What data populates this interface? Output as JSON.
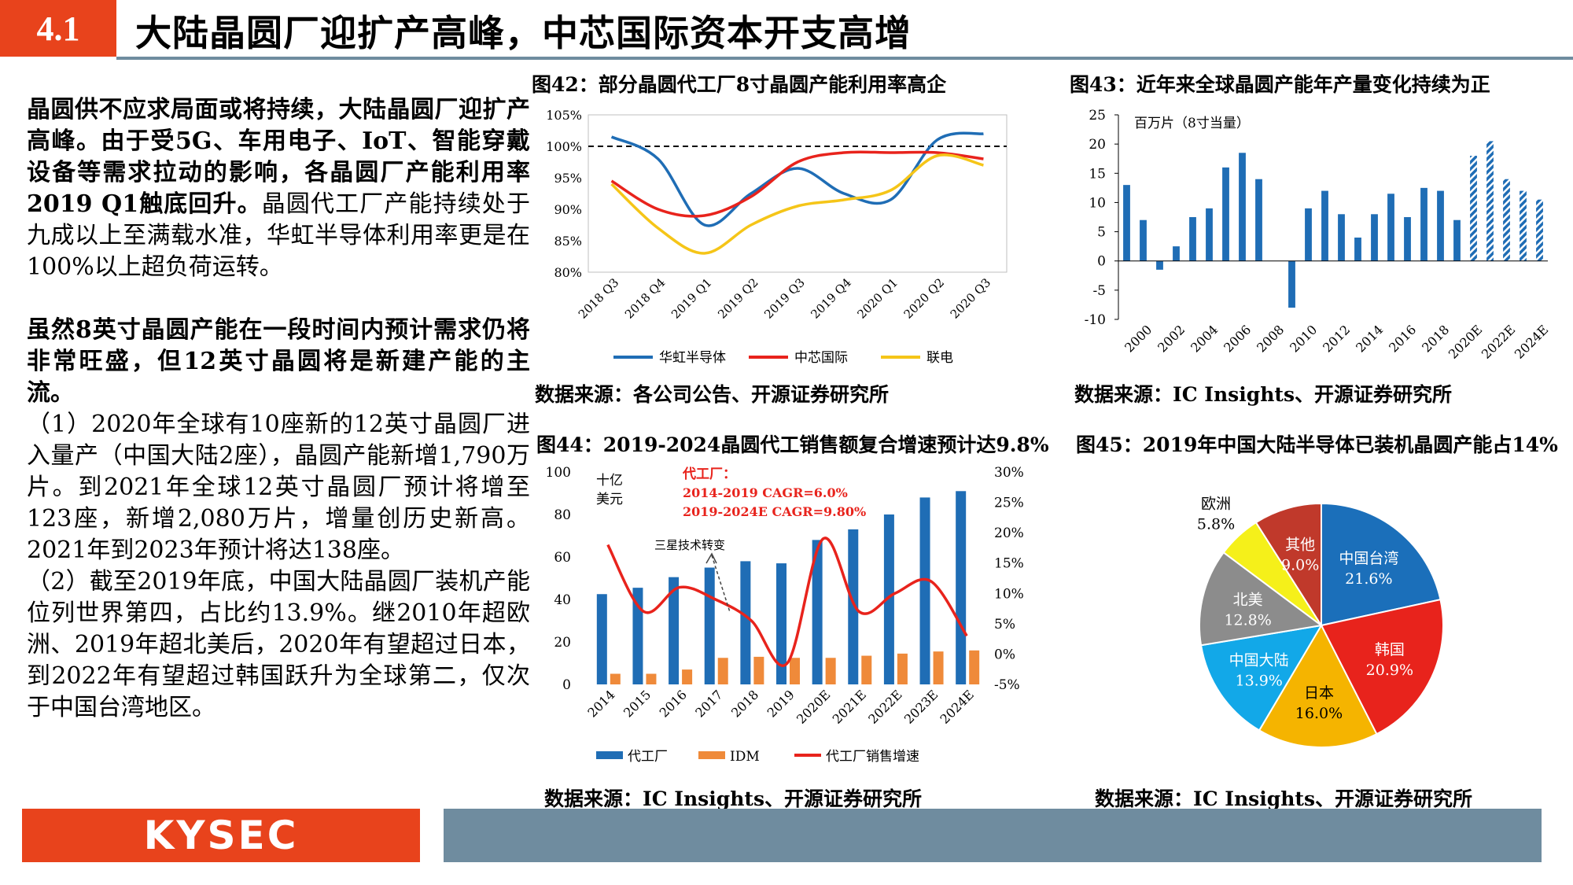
{
  "header": {
    "section_no": "4.1",
    "title": "大陆晶圆厂迎扩产高峰，中芯国际资本开支高增"
  },
  "body": {
    "p1_lead": "晶圆供不应求局面或将持续，大陆晶圆厂迎扩产高峰。由于受5G、车用电子、IoT、智能穿戴设备等需求拉动的影响，各晶圆厂产能利用率2019 Q1触底回升。",
    "p1_rest": "晶圆代工厂产能持续处于九成以上至满载水准，华虹半导体利用率更是在100%以上超负荷运转。",
    "p2_lead": "虽然8英寸晶圆产能在一段时间内预计需求仍将非常旺盛，但12英寸晶圆将是新建产能的主流。",
    "p2_item1": "（1）2020年全球有10座新的12英寸晶圆厂进入量产（中国大陆2座），晶圆产能新增1,790万片。到2021年全球12英寸晶圆厂预计将增至123座，新增2,080万片，增量创历史新高。2021年到2023年预计将达138座。",
    "p2_item2": "（2）截至2019年底，中国大陆晶圆厂装机产能位列世界第四，占比约13.9%。继2010年超欧洲、2019年超北美后，2020年有望超过日本，到2022年有望超过韩国跃升为全球第二，仅次于中国台湾地区。"
  },
  "figures": {
    "f42_title": "图42：部分晶圆代工厂8寸晶圆产能利用率高企",
    "f42_source": "数据来源：各公司公告、开源证券研究所",
    "f43_title": "图43：近年来全球晶圆产能年产量变化持续为正",
    "f43_source": "数据来源：IC Insights、开源证券研究所",
    "f44_title": "图44：2019-2024晶圆代工销售额复合增速预计达9.8%",
    "f44_source": "数据来源：IC Insights、开源证券研究所",
    "f45_title": "图45：2019年中国大陆半导体已装机晶圆产能占14%",
    "f45_source": "数据来源：IC Insights、开源证券研究所"
  },
  "footer": {
    "logo": "KYSEC"
  },
  "chart_data": [
    {
      "id": "fig42",
      "type": "line",
      "categories": [
        "2018 Q3",
        "2018 Q4",
        "2019 Q1",
        "2019 Q2",
        "2019 Q3",
        "2019 Q4",
        "2020 Q1",
        "2020 Q2",
        "2020 Q3"
      ],
      "ylim": [
        80,
        105
      ],
      "yticks": [
        80,
        85,
        90,
        95,
        100,
        105
      ],
      "ytick_labels": [
        "80%",
        "85%",
        "90%",
        "95%",
        "100%",
        "105%"
      ],
      "reference_line": 100,
      "series": [
        {
          "name": "华虹半导体",
          "color": "#1f6db5",
          "values": [
            101.5,
            98.0,
            87.5,
            92.5,
            96.5,
            92.5,
            91.5,
            101.0,
            102.0
          ]
        },
        {
          "name": "中芯国际",
          "color": "#e8231c",
          "values": [
            94.5,
            90.0,
            89.0,
            92.0,
            97.5,
            99.0,
            99.0,
            99.0,
            98.0
          ]
        },
        {
          "name": "联电",
          "color": "#f5c518",
          "values": [
            94.0,
            87.0,
            83.0,
            87.5,
            90.5,
            91.5,
            93.0,
            98.5,
            97.0
          ]
        }
      ]
    },
    {
      "id": "fig43",
      "type": "bar",
      "unit_label": "百万片（8寸当量）",
      "x": [
        1999,
        2000,
        2001,
        2002,
        2003,
        2004,
        2005,
        2006,
        2007,
        2008,
        2009,
        2010,
        2011,
        2012,
        2013,
        2014,
        2015,
        2016,
        2017,
        2018,
        2019,
        "2020E",
        "2021E",
        "2022E",
        "2023E",
        "2024E"
      ],
      "xtick_labels": [
        "2000",
        "2002",
        "2004",
        "2006",
        "2008",
        "2010",
        "2012",
        "2014",
        "2016",
        "2018",
        "2020E",
        "2022E",
        "2024E"
      ],
      "values": [
        13,
        7,
        -1.5,
        2.5,
        7.5,
        9,
        16,
        18.5,
        14,
        0,
        -8,
        9,
        12,
        8,
        4,
        8,
        11.5,
        7.5,
        12.5,
        12,
        7,
        18,
        20.5,
        14,
        12,
        10.5
      ],
      "forecast_from_index": 21,
      "ylim": [
        -10,
        25
      ],
      "yticks": [
        -10,
        -5,
        0,
        5,
        10,
        15,
        20,
        25
      ]
    },
    {
      "id": "fig44",
      "type": "bar",
      "categories": [
        "2014",
        "2015",
        "2016",
        "2017",
        "2018",
        "2019",
        "2020E",
        "2021E",
        "2022E",
        "2023E",
        "2024E"
      ],
      "left_unit": "十亿美元",
      "ylim_left": [
        0,
        100
      ],
      "yticks_left": [
        0,
        20,
        40,
        60,
        80,
        100
      ],
      "ylim_right": [
        -5,
        30
      ],
      "yticks_right": [
        -5,
        0,
        5,
        10,
        15,
        20,
        25,
        30
      ],
      "ytick_labels_right": [
        "-5%",
        "0%",
        "5%",
        "10%",
        "15%",
        "20%",
        "25%",
        "30%"
      ],
      "series": [
        {
          "name": "代工厂",
          "color": "#1f6db5",
          "axis": "left",
          "values": [
            42.5,
            45.5,
            50.5,
            55,
            58,
            57,
            68,
            73,
            80,
            88,
            91
          ]
        },
        {
          "name": "IDM",
          "color": "#ef8a3a",
          "axis": "left",
          "values": [
            5,
            5,
            7,
            12.5,
            13,
            12.5,
            12.5,
            13.5,
            14.5,
            15.5,
            16
          ]
        },
        {
          "name": "代工厂销售增速",
          "color": "#e8231c",
          "axis": "right",
          "values": [
            18,
            7,
            11,
            9,
            5.5,
            -1.5,
            19,
            7,
            10,
            12,
            3
          ]
        }
      ],
      "annotations": {
        "box_title": "代工厂：",
        "cagr1": "2014-2019 CAGR=6.0%",
        "cagr2": "2019-2024E CAGR=9.80%",
        "note": "三星技术转变"
      }
    },
    {
      "id": "fig45",
      "type": "pie",
      "slices": [
        {
          "label": "中国台湾",
          "value": 21.6,
          "display": "21.6%",
          "color": "#1b6fba"
        },
        {
          "label": "韩国",
          "value": 20.9,
          "display": "20.9%",
          "color": "#e8231c"
        },
        {
          "label": "日本",
          "value": 16.0,
          "display": "16.0%",
          "color": "#f5b400"
        },
        {
          "label": "中国大陆",
          "value": 13.9,
          "display": "13.9%",
          "color": "#12a8e8"
        },
        {
          "label": "北美",
          "value": 12.8,
          "display": "12.8%",
          "color": "#8c8c8c"
        },
        {
          "label": "欧洲",
          "value": 5.8,
          "display": "5.8%",
          "color": "#f5f01a"
        },
        {
          "label": "其他",
          "value": 9.0,
          "display": "9.0%",
          "color": "#c0392b"
        }
      ]
    }
  ]
}
